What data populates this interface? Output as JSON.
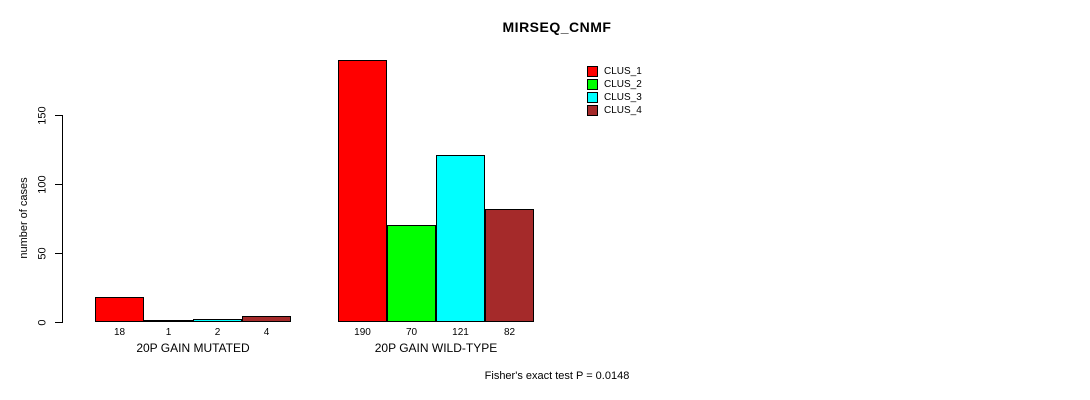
{
  "chart_data": {
    "type": "bar",
    "title": "MIRSEQ_CNMF",
    "ylabel": "number of cases",
    "xlabel": "",
    "categories": [
      "20P GAIN MUTATED",
      "20P GAIN WILD-TYPE"
    ],
    "series": [
      {
        "name": "CLUS_1",
        "color": "#FF0000",
        "values": [
          18,
          190
        ]
      },
      {
        "name": "CLUS_2",
        "color": "#00FF00",
        "values": [
          1,
          70
        ]
      },
      {
        "name": "CLUS_3",
        "color": "#00FFFF",
        "values": [
          2,
          121
        ]
      },
      {
        "name": "CLUS_4",
        "color": "#A52A2A",
        "values": [
          4,
          82
        ]
      }
    ],
    "yticks": [
      0,
      50,
      100,
      150
    ],
    "ylim": [
      0,
      150
    ],
    "grid": false,
    "legend_position": "top-right",
    "bar_border_color": "#000000",
    "annotation": "Fisher's exact test P = 0.0148"
  }
}
